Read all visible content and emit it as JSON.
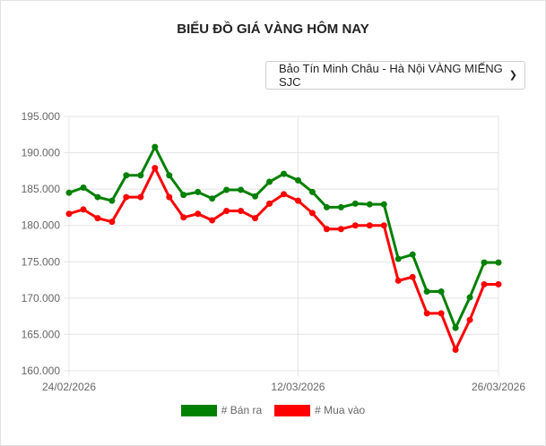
{
  "title": "BIỂU ĐỒ GIÁ VÀNG HÔM NAY",
  "selector": {
    "selected": "Bảo Tín Minh Châu - Hà Nội VÀNG MIẾNG SJC"
  },
  "chart_data": {
    "type": "line",
    "title": "BIỂU ĐỒ GIÁ VÀNG HÔM NAY",
    "x_tick_labels": [
      "24/02/2026",
      "12/03/2026",
      "26/03/2026"
    ],
    "x_count": 31,
    "ylim": [
      160000,
      195000
    ],
    "y_ticks": [
      "160.000",
      "165.000",
      "170.000",
      "175.000",
      "180.000",
      "185.000",
      "190.000",
      "195.000"
    ],
    "grid": true,
    "legend_position": "bottom",
    "series": [
      {
        "name": "# Bán ra",
        "color": "#008000",
        "values": [
          184500,
          185200,
          183900,
          183400,
          186900,
          186900,
          190800,
          186900,
          184200,
          184600,
          183700,
          184900,
          184900,
          184000,
          186000,
          187100,
          186200,
          184600,
          182500,
          182500,
          183000,
          182900,
          182900,
          175400,
          176000,
          170900,
          170900,
          165900,
          170100,
          174900,
          174900
        ]
      },
      {
        "name": "# Mua vào",
        "color": "#ff0000",
        "values": [
          181600,
          182200,
          181000,
          180500,
          183900,
          183900,
          187900,
          183900,
          181100,
          181600,
          180700,
          182000,
          182000,
          181000,
          183000,
          184300,
          183400,
          181700,
          179500,
          179500,
          180000,
          180000,
          180000,
          172400,
          172900,
          167900,
          167900,
          162900,
          167000,
          171900,
          171900
        ]
      }
    ]
  }
}
